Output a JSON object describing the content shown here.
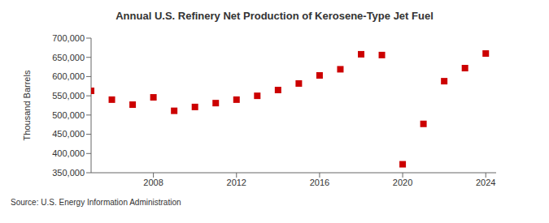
{
  "chart_data": {
    "type": "scatter",
    "title": "Annual U.S. Refinery Net Production of Kerosene-Type Jet Fuel",
    "y_label": "Thousand Barrels",
    "source": "Source: U.S. Energy Information Administration",
    "x": [
      2005,
      2006,
      2007,
      2008,
      2009,
      2010,
      2011,
      2012,
      2013,
      2014,
      2015,
      2016,
      2017,
      2018,
      2019,
      2020,
      2021,
      2022,
      2023,
      2024
    ],
    "values": [
      563000,
      540000,
      527000,
      546000,
      511000,
      521000,
      531000,
      540000,
      550000,
      565000,
      582000,
      603000,
      619000,
      658000,
      656000,
      372000,
      477000,
      588000,
      622000,
      660000
    ],
    "color": "#cc0000",
    "marker": "square",
    "xlim": [
      2005,
      2024.5
    ],
    "xticks": [
      2008,
      2012,
      2016,
      2020,
      2024
    ],
    "ylim": [
      350000,
      700000
    ],
    "yticks": [
      {
        "value": 350000,
        "label": "350,000"
      },
      {
        "value": 400000,
        "label": "400,000"
      },
      {
        "value": 450000,
        "label": "450,000"
      },
      {
        "value": 500000,
        "label": "500,000"
      },
      {
        "value": 550000,
        "label": "550,000"
      },
      {
        "value": 600000,
        "label": "600,000"
      },
      {
        "value": 650000,
        "label": "650,000"
      },
      {
        "value": 700000,
        "label": "700,000"
      }
    ],
    "grid": false
  }
}
